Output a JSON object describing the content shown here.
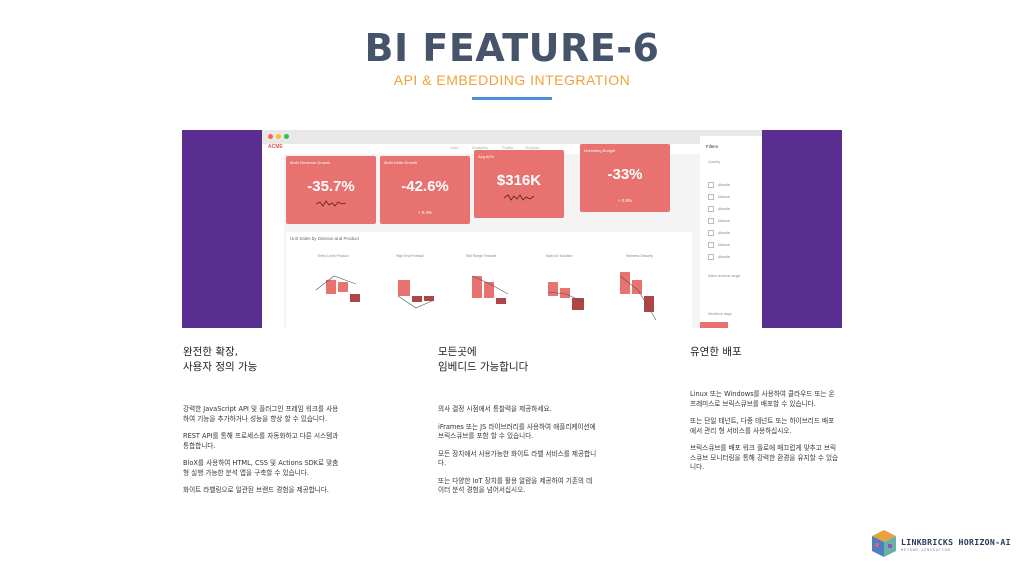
{
  "slide": {
    "title": "BI FEATURE-6",
    "subtitle": "API & EMBEDDING INTEGRATION"
  },
  "dashboard": {
    "logo": "ACME",
    "nav_tabs": [
      "Lists",
      "Analytics",
      "Profile",
      "Explore"
    ],
    "kpis": [
      {
        "label": "MoM Revenue Growth",
        "value": "-35.7%",
        "sub": ""
      },
      {
        "label": "MoM Units Growth",
        "value": "-42.6%",
        "sub": "+ 0.4%"
      },
      {
        "label": "Avg AOV",
        "value": "$316K",
        "sub": ""
      },
      {
        "label": "Marketing Budget",
        "value": "-33%",
        "sub": "+ 0.8%"
      }
    ],
    "chart_title": "Unit Sales by Division and Product",
    "chart_columns": [
      "Entry Level Product",
      "High End Firewall",
      "Mid Range Firewall",
      "Main AV Solution",
      "Wireless Security"
    ],
    "filters_title": "Filters",
    "filters": [
      "Country",
      "Albania",
      "Albania",
      "Albania",
      "Albania",
      "Albania",
      "Albania",
      "Albania",
      "Sales revenue range",
      "Months in days"
    ],
    "colors": {
      "banner": "#5a2d91",
      "kpi": "#e8726f",
      "bar_light": "#e8726f",
      "bar_dark": "#b04545"
    }
  },
  "columns": [
    {
      "heading": [
        "완전한 확장,",
        "사용자 정의 가능"
      ],
      "paragraphs": [
        "강력한 JavaScript API 및 플러그인 프레임 워크를 사용하여 기능을 추가하거나 성능을 향상 할 수 있습니다.",
        "REST API를 통해 프로세스를 자동화하고 다른 시스템과 통합합니다.",
        "BloX를 사용하여 HTML, CSS 및 Actions SDK로 맞춤형 실행 가능한 분석 앱을 구축할 수 있습니다.",
        "화이트 라벨링으로 일관된 브랜드 경험을 제공합니다."
      ]
    },
    {
      "heading": [
        "모든곳에",
        "임베디드 가능합니다"
      ],
      "paragraphs": [
        "의사 결정 시점에서 통찰력을 제공하세요.",
        "iFrames 또는 JS 라이브러리를 사용하여 애플리케이션에 브릭스큐브를 포함 할 수 있습니다.",
        "모든 장치에서 사용가능한 화이트 라벨 서비스를 제공합니다.",
        "또는 다양한 IoT 장치를 활용 알람을 제공하여 기존의 데이터 분석 경험을 넘어서십시오."
      ]
    },
    {
      "heading": [
        "유연한 배포"
      ],
      "paragraphs": [
        "Linux 또는 Windows를 사용하여 클라우드 또는 온 프레미스로 브릭스큐브를 배포할 수 있습니다.",
        "또는 단일 테넌트, 다중 테넌트 또는 하이브리드 배포에서 관리 형 서비스를 사용하십시오.",
        "브릭스큐브를 배포 워크 플로에 매끄럽게 맞추고 브릭스큐브 모니터링을 통해 강력한 환경을 유지할 수 있습니다."
      ]
    }
  ],
  "brand": {
    "name": "LINKBRICKS HORIZON-AI",
    "tagline": "BEYOND GENERATION"
  }
}
